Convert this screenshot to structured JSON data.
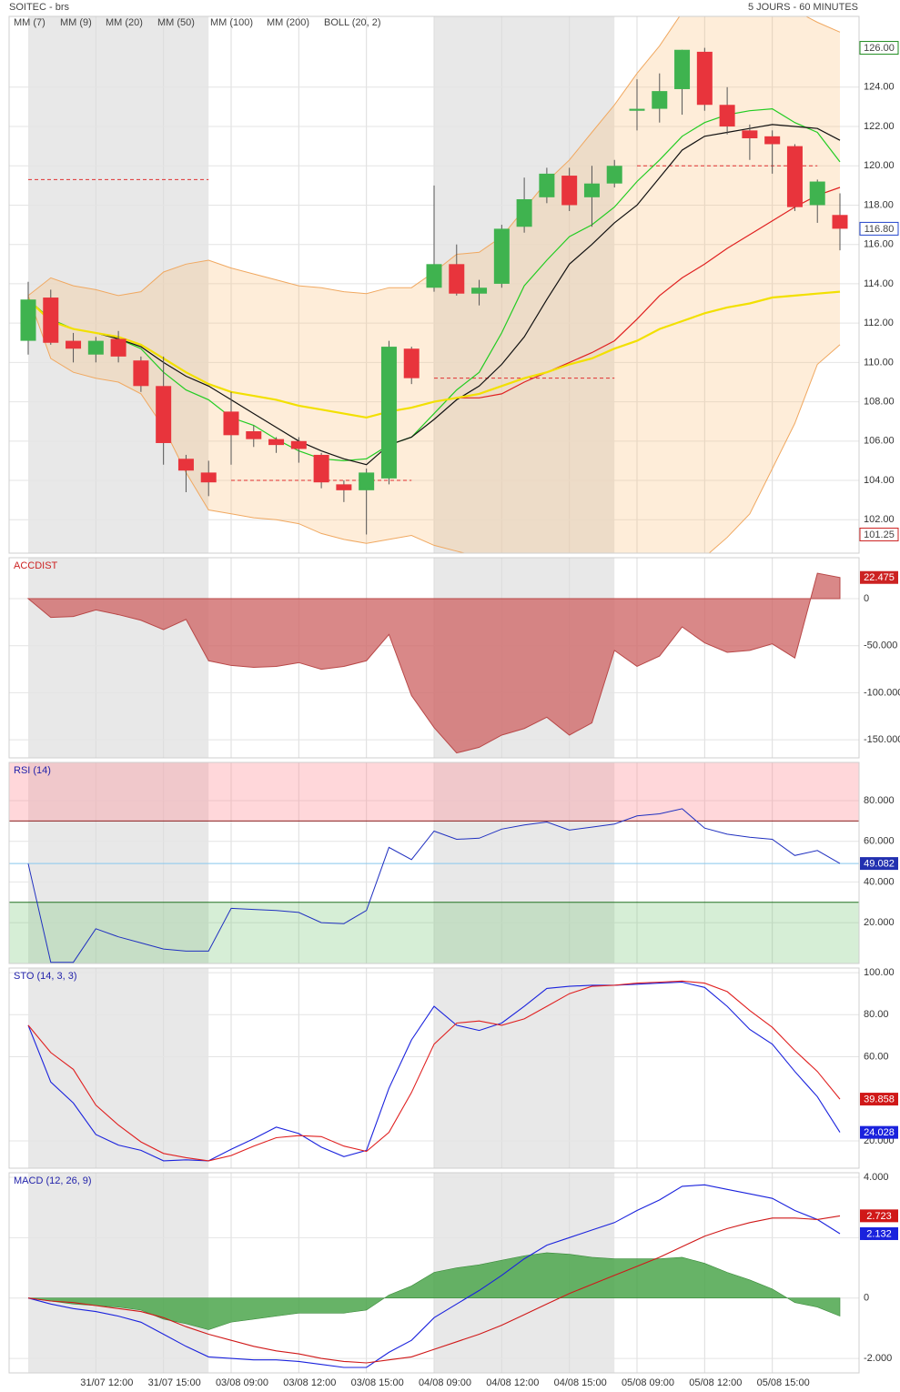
{
  "header": {
    "title": "SOITEC - brs",
    "period": "5 JOURS - 60 MINUTES"
  },
  "chart_data": [
    {
      "type": "candlestick",
      "up_color": "#3fb34f",
      "down_color": "#e8343c",
      "open": [
        111.1,
        113.3,
        111.1,
        110.4,
        111.2,
        110.1,
        108.8,
        105.1,
        104.4,
        107.5,
        106.5,
        106.1,
        106.0,
        105.3,
        103.8,
        103.5,
        104.1,
        110.7,
        113.8,
        115.0,
        113.5,
        114.0,
        116.9,
        118.4,
        119.5,
        118.4,
        119.1,
        122.8,
        122.9,
        123.9,
        125.8,
        123.1,
        121.8,
        121.5,
        121.0,
        118.0,
        117.5
      ],
      "high": [
        114.1,
        113.7,
        111.5,
        111.3,
        111.6,
        110.3,
        110.3,
        105.3,
        105.0,
        108.5,
        106.8,
        106.2,
        106.2,
        105.4,
        104.0,
        104.6,
        111.1,
        110.8,
        119.0,
        116.0,
        114.2,
        117.0,
        119.4,
        119.9,
        119.9,
        120.0,
        120.3,
        124.4,
        124.7,
        125.9,
        126.0,
        124.0,
        122.1,
        121.8,
        121.1,
        119.3,
        118.6
      ],
      "low": [
        110.4,
        110.9,
        110.0,
        110.0,
        110.0,
        108.5,
        104.8,
        103.4,
        103.2,
        104.8,
        105.7,
        105.4,
        104.9,
        103.6,
        102.9,
        101.25,
        103.8,
        108.9,
        113.6,
        113.4,
        112.9,
        113.8,
        116.6,
        118.1,
        117.7,
        116.9,
        118.9,
        121.8,
        122.2,
        122.6,
        122.8,
        121.6,
        120.3,
        119.6,
        117.7,
        117.1,
        115.7
      ],
      "close": [
        113.2,
        111.0,
        110.7,
        111.1,
        110.3,
        108.8,
        105.9,
        104.5,
        103.9,
        106.3,
        106.1,
        105.8,
        105.6,
        103.9,
        103.5,
        104.4,
        110.8,
        109.2,
        115.0,
        113.5,
        113.8,
        116.8,
        118.3,
        119.6,
        118.0,
        119.1,
        120.0,
        122.9,
        123.8,
        125.9,
        123.1,
        122.0,
        121.4,
        121.1,
        117.9,
        119.2,
        116.8
      ],
      "overlays": [
        {
          "name": "MM (7)",
          "color": "#22cc22",
          "values": [
            113.2,
            112.2,
            111.7,
            111.5,
            111.2,
            110.7,
            109.5,
            108.6,
            108.1,
            107.2,
            106.8,
            106.1,
            105.5,
            105.1,
            105.0,
            105.1,
            105.8,
            106.2,
            107.4,
            108.6,
            109.5,
            111.5,
            113.9,
            115.2,
            116.4,
            117.0,
            117.9,
            119.2,
            120.3,
            121.5,
            122.2,
            122.6,
            122.8,
            122.9,
            122.2,
            121.7,
            120.2
          ]
        },
        {
          "name": "MM (9)",
          "color": "#111111",
          "values": [
            113.2,
            112.1,
            111.7,
            111.5,
            111.2,
            110.8,
            110.0,
            109.3,
            108.8,
            108.1,
            107.4,
            106.7,
            106.0,
            105.5,
            105.1,
            104.8,
            105.8,
            106.2,
            107.1,
            108.1,
            108.8,
            109.9,
            111.3,
            113.2,
            115.0,
            116.0,
            117.1,
            118.0,
            119.4,
            120.8,
            121.5,
            121.7,
            121.9,
            122.1,
            122.0,
            121.9,
            121.3
          ]
        },
        {
          "name": "MM (20)",
          "color": "#e02020",
          "values": [
            null,
            null,
            null,
            null,
            null,
            null,
            null,
            null,
            null,
            null,
            null,
            null,
            null,
            null,
            null,
            null,
            null,
            null,
            null,
            108.2,
            108.2,
            108.4,
            109.0,
            109.5,
            110.0,
            110.5,
            111.1,
            112.2,
            113.4,
            114.3,
            115.0,
            115.8,
            116.5,
            117.2,
            117.9,
            118.5,
            118.9
          ]
        },
        {
          "name": "MM (50)",
          "color": "#2020e0",
          "values": [
            null,
            null,
            null,
            null,
            null,
            null,
            null,
            null,
            null,
            null,
            null,
            null,
            null,
            null,
            null,
            null,
            null,
            null,
            null,
            null,
            null,
            null,
            null,
            null,
            null,
            null,
            null,
            null,
            null,
            null,
            null,
            null,
            null,
            null,
            null,
            null,
            null
          ]
        },
        {
          "name": "MM (100)",
          "color": "#e020e0",
          "values": [
            null,
            null,
            null,
            null,
            null,
            null,
            null,
            null,
            null,
            null,
            null,
            null,
            null,
            null,
            null,
            null,
            null,
            null,
            null,
            null,
            null,
            null,
            null,
            null,
            null,
            null,
            null,
            null,
            null,
            null,
            null,
            null,
            null,
            null,
            null,
            null,
            null
          ]
        },
        {
          "name": "MM (200)",
          "color": "#f2e000",
          "values": [
            113.2,
            112.1,
            111.7,
            111.5,
            111.3,
            110.9,
            110.2,
            109.5,
            108.9,
            108.5,
            108.3,
            108.1,
            107.8,
            107.6,
            107.4,
            107.2,
            107.5,
            107.7,
            108.0,
            108.2,
            108.4,
            108.8,
            109.2,
            109.5,
            109.9,
            110.2,
            110.7,
            111.1,
            111.7,
            112.1,
            112.5,
            112.8,
            113.0,
            113.3,
            113.4,
            113.5,
            113.6
          ]
        }
      ],
      "bollinger": {
        "name": "BOLL (20, 2)",
        "color": "#f0a860",
        "upper": [
          113.4,
          114.3,
          113.9,
          113.7,
          113.4,
          113.6,
          114.6,
          115.0,
          115.2,
          114.8,
          114.5,
          114.2,
          113.9,
          113.8,
          113.6,
          113.5,
          113.8,
          113.8,
          114.6,
          115.5,
          115.6,
          116.4,
          117.8,
          119.2,
          120.3,
          121.7,
          123.1,
          124.7,
          126.1,
          127.8,
          128.2,
          128.4,
          128.4,
          128.2,
          127.9,
          127.3,
          126.8
        ],
        "lower": [
          113.4,
          110.2,
          109.5,
          109.2,
          109.0,
          108.4,
          106.7,
          104.4,
          102.5,
          102.3,
          102.1,
          102.0,
          101.8,
          101.3,
          101.0,
          100.8,
          101.0,
          101.2,
          100.7,
          100.4,
          100.1,
          99.7,
          99.5,
          99.3,
          99.2,
          99.2,
          99.3,
          99.4,
          99.6,
          99.8,
          100.1,
          101.1,
          102.3,
          104.6,
          106.9,
          109.9,
          110.9
        ]
      },
      "levels": [
        119.3,
        104.0,
        109.2,
        120.0
      ],
      "level_color": "#e03030",
      "markers": [
        {
          "value": 126,
          "label": "126.00",
          "color": "#1a8a1a"
        },
        {
          "value": 116.8,
          "label": "116.80",
          "color": "#2244cc"
        },
        {
          "value": 101.25,
          "label": "101.25",
          "color": "#cc2222"
        }
      ],
      "ylim": [
        100.3,
        127.6
      ],
      "yticks": [
        {
          "value": 102,
          "label": "102.00"
        },
        {
          "value": 104,
          "label": "104.00"
        },
        {
          "value": 106,
          "label": "106.00"
        },
        {
          "value": 108,
          "label": "108.00"
        },
        {
          "value": 110,
          "label": "110.00"
        },
        {
          "value": 112,
          "label": "112.00"
        },
        {
          "value": 114,
          "label": "114.00"
        },
        {
          "value": 116,
          "label": "116.00"
        },
        {
          "value": 118,
          "label": "118.00"
        },
        {
          "value": 120,
          "label": "120.00"
        },
        {
          "value": 122,
          "label": "122.00"
        },
        {
          "value": 124,
          "label": "124.00"
        }
      ],
      "grid": true
    },
    {
      "type": "area",
      "title": "ACCDIST",
      "color": "#d06a6a",
      "values": [
        0,
        -20,
        -19,
        -12,
        -17,
        -23,
        -33,
        -22,
        -66,
        -71,
        -73,
        -72,
        -68,
        -75,
        -72,
        -66,
        -38,
        -103,
        -137,
        -164,
        -158,
        -145,
        -138,
        -126,
        -145,
        -132,
        -55,
        -72,
        -61,
        -30,
        -47,
        -57,
        -55,
        -48,
        -63,
        27,
        22.475
      ],
      "ylim": [
        -169.2,
        43.5
      ],
      "yticks": [
        0,
        {
          "value": -50,
          "label": "-50.000"
        },
        {
          "value": -100,
          "label": "-100.000"
        },
        {
          "value": -150,
          "label": "-150.000"
        }
      ],
      "grid": true
    },
    {
      "type": "line",
      "title": "RSI (14)",
      "color": "#2030c0",
      "values": [
        49,
        0.5,
        0.5,
        17,
        13,
        10,
        7,
        6,
        6,
        27,
        26.5,
        26,
        25,
        20,
        19.5,
        26,
        57,
        51,
        65,
        61,
        61.5,
        66,
        68,
        69.5,
        65.5,
        67,
        68.5,
        72.5,
        73.5,
        76,
        66.5,
        63.5,
        62,
        61,
        53,
        55.5,
        49.082
      ],
      "upper_level": 70,
      "lower_level": 30,
      "ylim": [
        -0.1,
        98.8
      ],
      "yticks": [
        {
          "value": 20,
          "label": "20.000"
        },
        {
          "value": 40,
          "label": "40.000"
        },
        {
          "value": 60,
          "label": "60.000"
        },
        {
          "value": 80,
          "label": "80.000"
        }
      ],
      "grid": true
    },
    {
      "type": "line",
      "title": "STO (14, 3, 3)",
      "series": [
        {
          "color": "#1a22dd",
          "values": [
            75,
            48,
            38,
            23,
            18,
            15.5,
            10.5,
            11,
            10.5,
            16,
            21,
            26.5,
            23.5,
            17,
            12.5,
            15.5,
            45,
            68,
            84,
            75,
            72.5,
            76,
            84,
            92.5,
            93.5,
            94,
            94,
            94.5,
            95,
            95.5,
            93,
            84,
            73,
            66,
            53,
            41,
            24.028
          ]
        },
        {
          "color": "#e02020",
          "values": [
            75,
            62,
            54,
            37,
            27.5,
            19.5,
            14,
            12,
            10.5,
            13,
            17.5,
            21.5,
            22.5,
            22,
            17.5,
            15,
            24,
            43,
            66,
            76,
            77,
            75,
            78,
            84,
            90,
            93.5,
            94,
            95,
            95.5,
            96,
            95,
            91,
            82,
            74,
            63,
            53,
            39.858
          ]
        }
      ],
      "ylim": [
        7.0,
        102.2
      ],
      "yticks": [
        {
          "value": 20,
          "label": "20.000"
        },
        {
          "value": 60,
          "label": "60.00"
        },
        {
          "value": 80,
          "label": "80.00"
        },
        {
          "value": 100,
          "label": "100.00"
        }
      ],
      "grid": true
    },
    {
      "type": "macd",
      "title": "MACD (12, 26, 9)",
      "categories": [
        null,
        null,
        null,
        "31/07 12:00",
        null,
        null,
        "31/07 15:00",
        null,
        null,
        "03/08 09:00",
        null,
        null,
        "03/08 12:00",
        null,
        null,
        "03/08 15:00",
        null,
        null,
        "04/08 09:00",
        null,
        null,
        "04/08 12:00",
        null,
        null,
        "04/08 15:00",
        null,
        null,
        "05/08 09:00",
        null,
        null,
        "05/08 12:00",
        null,
        null,
        "05/08 15:00",
        null,
        null,
        null
      ],
      "histogram": {
        "color": "#4ca64c",
        "values": [
          0,
          -0.1,
          -0.2,
          -0.25,
          -0.3,
          -0.4,
          -0.7,
          -0.85,
          -1.05,
          -0.8,
          -0.7,
          -0.6,
          -0.5,
          -0.5,
          -0.5,
          -0.4,
          0.1,
          0.4,
          0.85,
          1.0,
          1.1,
          1.25,
          1.4,
          1.5,
          1.45,
          1.35,
          1.3,
          1.3,
          1.3,
          1.35,
          1.15,
          0.85,
          0.6,
          0.3,
          -0.15,
          -0.3,
          -0.6
        ]
      },
      "series": [
        {
          "color": "#1a22dd",
          "values": [
            0,
            -0.2,
            -0.35,
            -0.45,
            -0.6,
            -0.8,
            -1.2,
            -1.6,
            -1.95,
            -2.0,
            -2.05,
            -2.05,
            -2.1,
            -2.2,
            -2.3,
            -2.3,
            -1.8,
            -1.4,
            -0.65,
            -0.2,
            0.25,
            0.75,
            1.3,
            1.75,
            2.0,
            2.25,
            2.5,
            2.9,
            3.25,
            3.7,
            3.75,
            3.6,
            3.45,
            3.3,
            2.9,
            2.6,
            2.132
          ]
        },
        {
          "color": "#d01818",
          "values": [
            0,
            -0.1,
            -0.15,
            -0.25,
            -0.35,
            -0.45,
            -0.65,
            -0.95,
            -1.2,
            -1.4,
            -1.6,
            -1.75,
            -1.85,
            -2.0,
            -2.1,
            -2.15,
            -2.05,
            -1.95,
            -1.7,
            -1.45,
            -1.2,
            -0.9,
            -0.55,
            -0.2,
            0.15,
            0.45,
            0.75,
            1.05,
            1.35,
            1.7,
            2.05,
            2.3,
            2.5,
            2.65,
            2.65,
            2.6,
            2.723
          ]
        }
      ],
      "ylim": [
        -2.48,
        4.15
      ],
      "yticks": [
        {
          "value": 4,
          "label": "4.000"
        },
        {
          "value": 2,
          "label": "2.000"
        },
        0,
        {
          "value": -2,
          "label": "-2.000"
        }
      ],
      "grid": true
    }
  ]
}
